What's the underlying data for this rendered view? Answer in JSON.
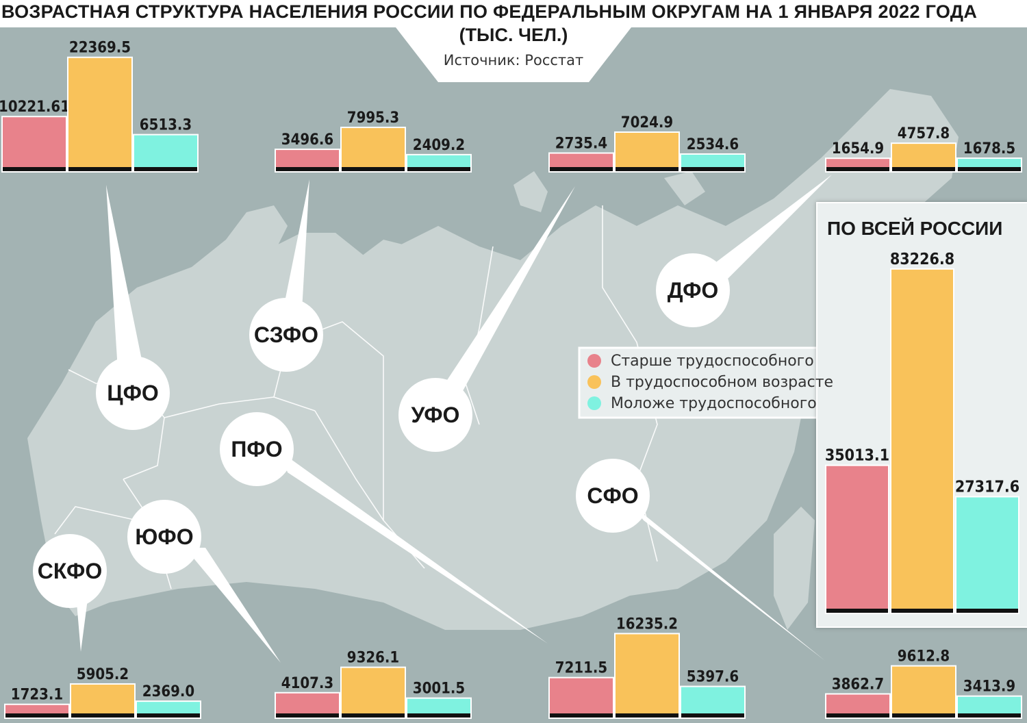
{
  "title": "ВОЗРАСТНАЯ СТРУКТУРА НАСЕЛЕНИЯ РОССИИ ПО ФЕДЕРАЛЬНЫМ ОКРУГАМ НА 1 ЯНВАРЯ 2022 ГОДА",
  "subtitle": "(ТЫС. ЧЕЛ.)",
  "source": "Источник: Росстат",
  "colors": {
    "older": "#e8828b",
    "working": "#f9c25a",
    "younger": "#7ff2e0",
    "map_bg": "#a3b3b3",
    "land": "#c9d3d2",
    "base": "#111111"
  },
  "legend": {
    "older": "Старше  трудоспособного",
    "working": "В трудоспособном возрасте",
    "younger": "Моложе трудоспособного"
  },
  "total_title": "ПО ВСЕЙ РОССИИ",
  "chart_data": {
    "type": "bar",
    "title": "ВОЗРАСТНАЯ СТРУКТУРА НАСЕЛЕНИЯ РОССИИ ПО ФЕДЕРАЛЬНЫМ ОКРУГАМ НА 1 ЯНВАРЯ 2022 ГОДА",
    "unit": "(ТЫС. ЧЕЛ.)",
    "series_names": [
      "Старше  трудоспособного",
      "В трудоспособном возрасте",
      "Моложе трудоспособного"
    ],
    "districts": [
      {
        "name": "ЦФО",
        "values": [
          10221.61,
          22369.5,
          6513.3
        ],
        "labels": [
          "10221.61",
          "22369.5",
          "6513.3"
        ]
      },
      {
        "name": "СЗФО",
        "values": [
          3496.6,
          7995.3,
          2409.2
        ],
        "labels": [
          "3496.6",
          "7995.3",
          "2409.2"
        ]
      },
      {
        "name": "УФО",
        "values": [
          2735.4,
          7024.9,
          2534.6
        ],
        "labels": [
          "2735.4",
          "7024.9",
          "2534.6"
        ]
      },
      {
        "name": "ДФО",
        "values": [
          1654.9,
          4757.8,
          1678.5
        ],
        "labels": [
          "1654.9",
          "4757.8",
          "1678.5"
        ]
      },
      {
        "name": "СКФО",
        "values": [
          1723.1,
          5905.2,
          2369.0
        ],
        "labels": [
          "1723.1",
          "5905.2",
          "2369.0"
        ]
      },
      {
        "name": "ЮФО",
        "values": [
          4107.3,
          9326.1,
          3001.5
        ],
        "labels": [
          "4107.3",
          "9326.1",
          "3001.5"
        ]
      },
      {
        "name": "ПФО",
        "values": [
          7211.5,
          16235.2,
          5397.6
        ],
        "labels": [
          "7211.5",
          "16235.2",
          "5397.6"
        ]
      },
      {
        "name": "СФО",
        "values": [
          3862.7,
          9612.8,
          3413.9
        ],
        "labels": [
          "3862.7",
          "9612.8",
          "3413.9"
        ]
      }
    ],
    "total": {
      "name": "ПО ВСЕЙ РОССИИ",
      "values": [
        35013.1,
        83226.8,
        27317.6
      ],
      "labels": [
        "35013.1",
        "83226.8",
        "27317.6"
      ]
    }
  }
}
